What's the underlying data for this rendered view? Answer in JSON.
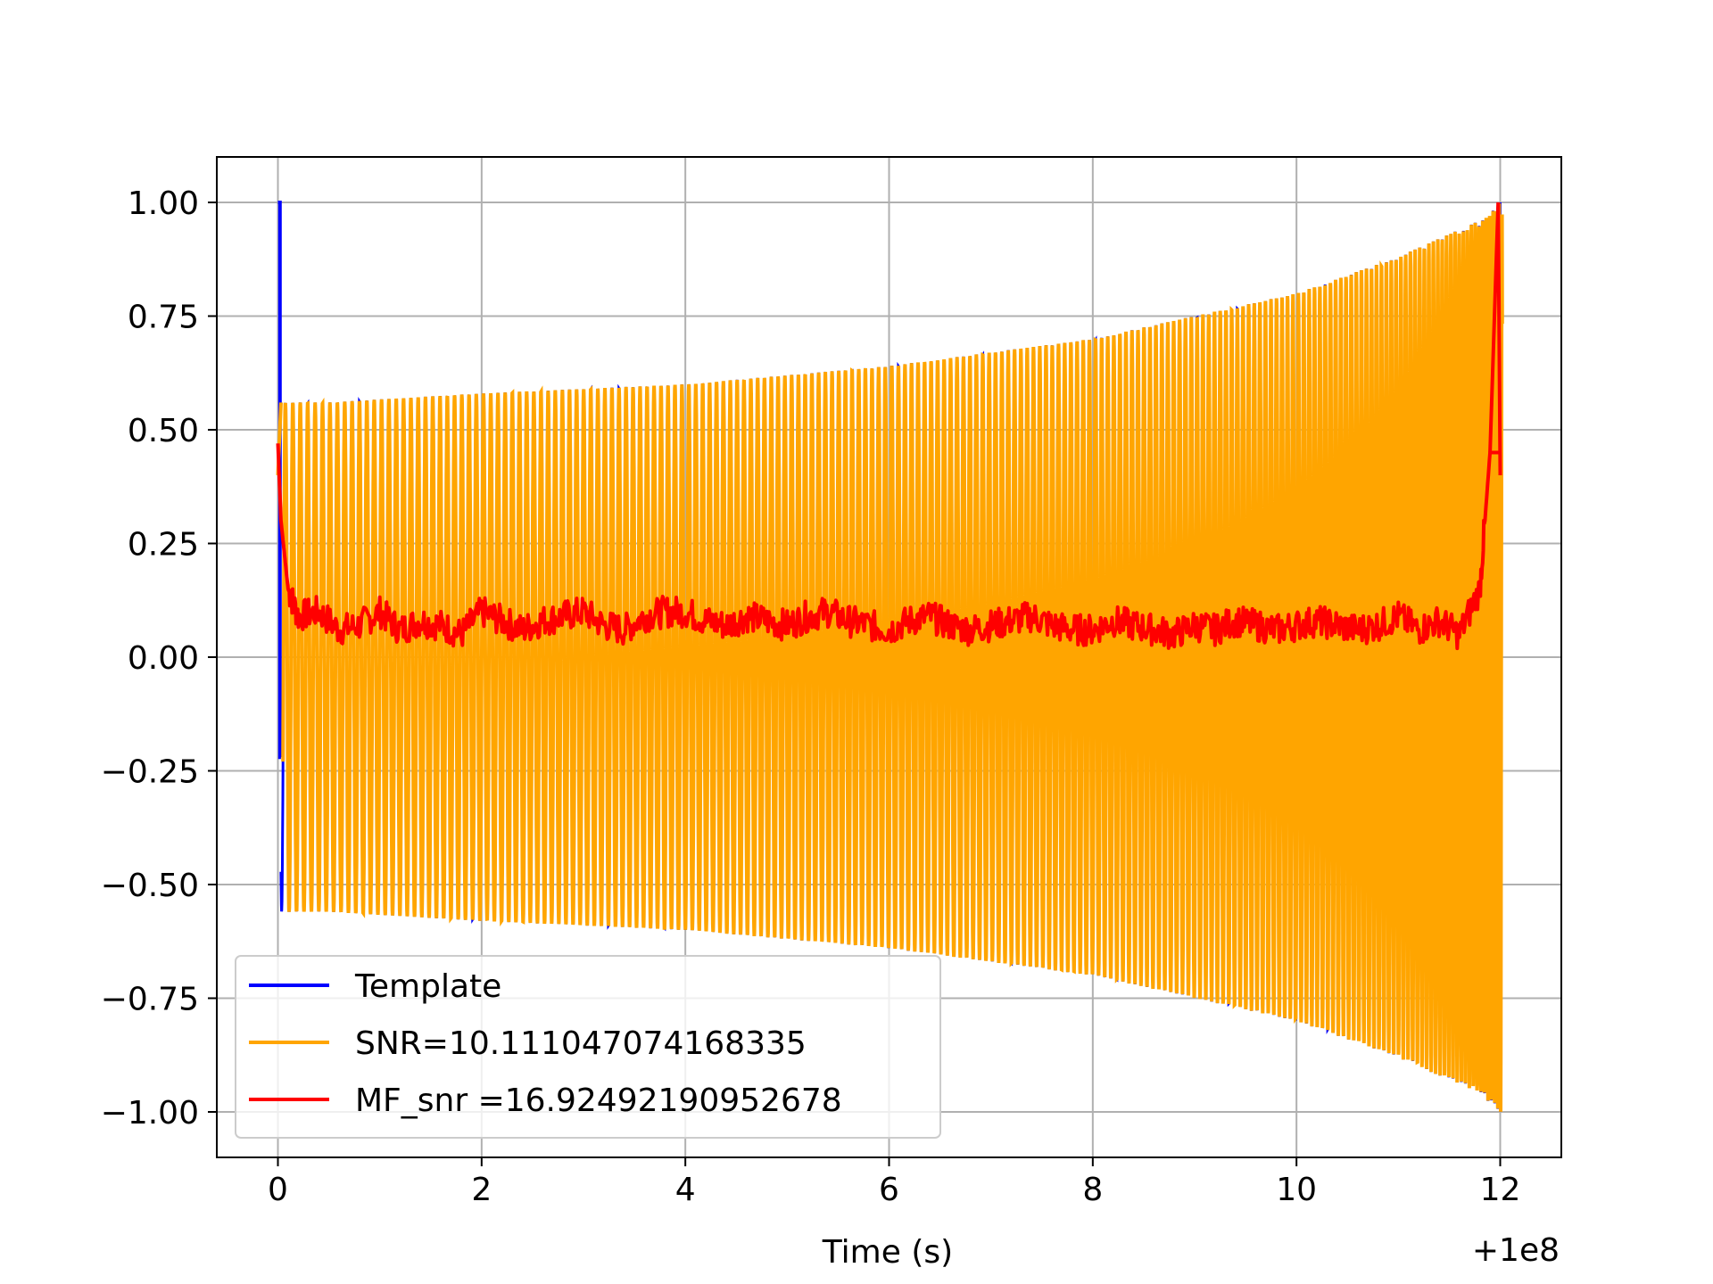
{
  "chart_data": {
    "type": "line",
    "title": "",
    "xlabel": "Time (s)",
    "ylabel": "",
    "x_offset_label": "+1e8",
    "xlim": [
      -0.6,
      12.6
    ],
    "ylim": [
      -1.1,
      1.1
    ],
    "xticks": [
      0,
      2,
      4,
      6,
      8,
      10,
      12
    ],
    "xtick_labels": [
      "0",
      "2",
      "4",
      "6",
      "8",
      "10",
      "12"
    ],
    "yticks": [
      1.0,
      0.75,
      0.5,
      0.25,
      0.0,
      -0.25,
      -0.5,
      -0.75,
      -1.0
    ],
    "ytick_labels": [
      "1.00",
      "0.75",
      "0.50",
      "0.25",
      "0.00",
      "−0.25",
      "−0.50",
      "−0.75",
      "−1.00"
    ],
    "grid": true,
    "legend_position": "lower-left",
    "series": [
      {
        "name": "Template",
        "color": "#0000ff",
        "description_points": {
          "x": [
            0.0,
            0.02,
            0.03,
            0.5,
            2,
            4,
            6,
            8,
            10,
            11,
            11.8,
            12.0,
            12.01
          ],
          "envelope": [
            1.0,
            -0.22,
            0.56,
            0.56,
            0.58,
            0.6,
            0.64,
            0.7,
            0.8,
            0.88,
            0.96,
            1.0,
            -0.22
          ]
        }
      },
      {
        "name": "SNR=10.111047074168335",
        "color": "#ffa500",
        "description_points": {
          "x": [
            0.0,
            0.03,
            0.5,
            2,
            4,
            6,
            8,
            10,
            11,
            11.8,
            12.0
          ],
          "envelope": [
            0.4,
            0.56,
            0.56,
            0.58,
            0.6,
            0.64,
            0.7,
            0.8,
            0.88,
            0.96,
            1.0
          ]
        }
      },
      {
        "name": "MF_snr =16.92492190952678",
        "color": "#ff0000",
        "x": [
          0.0,
          0.03,
          0.1,
          0.2,
          0.4,
          0.6,
          0.8,
          1.0,
          1.2,
          1.4,
          1.6,
          1.8,
          2.0,
          2.2,
          2.4,
          2.6,
          2.8,
          3.0,
          3.2,
          3.4,
          3.6,
          3.8,
          4.0,
          4.2,
          4.4,
          4.6,
          4.8,
          5.0,
          5.2,
          5.4,
          5.6,
          5.8,
          6.0,
          6.2,
          6.4,
          6.6,
          6.8,
          7.0,
          7.2,
          7.4,
          7.6,
          7.8,
          8.0,
          8.2,
          8.4,
          8.6,
          8.8,
          9.0,
          9.2,
          9.4,
          9.6,
          9.8,
          10.0,
          10.2,
          10.4,
          10.6,
          10.8,
          11.0,
          11.2,
          11.4,
          11.6,
          11.8,
          11.9,
          12.0
        ],
        "y": [
          0.47,
          0.3,
          0.15,
          0.09,
          0.1,
          0.06,
          0.07,
          0.1,
          0.06,
          0.08,
          0.07,
          0.05,
          0.1,
          0.08,
          0.06,
          0.08,
          0.09,
          0.1,
          0.07,
          0.06,
          0.09,
          0.1,
          0.1,
          0.08,
          0.07,
          0.09,
          0.08,
          0.07,
          0.09,
          0.1,
          0.08,
          0.07,
          0.06,
          0.08,
          0.09,
          0.07,
          0.06,
          0.07,
          0.08,
          0.09,
          0.07,
          0.06,
          0.06,
          0.08,
          0.07,
          0.06,
          0.05,
          0.07,
          0.06,
          0.08,
          0.07,
          0.06,
          0.07,
          0.08,
          0.07,
          0.06,
          0.07,
          0.09,
          0.06,
          0.08,
          0.05,
          0.15,
          0.45,
          0.45
        ]
      }
    ]
  }
}
